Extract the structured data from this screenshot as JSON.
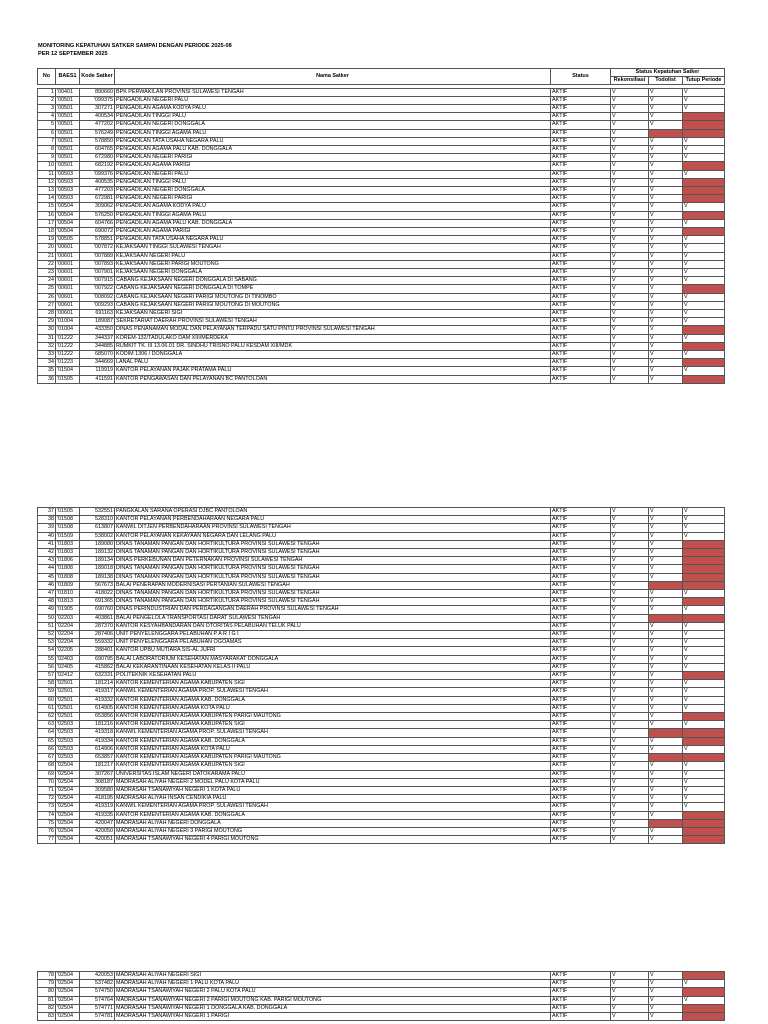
{
  "title_line1": "MONITORING KEPATUHAN SATKER SAMPAI DENGAN PERIODE 2025-08",
  "title_line2": "PER 12 SEPTEMBER 2025",
  "headers": {
    "no": "No",
    "baes1": "BAES1",
    "kode": "Kode Satker",
    "nama": "Nama Satker",
    "status": "Status",
    "group": "Status Kepatuhan Satker",
    "rekon": "Rekonsiliasi",
    "todolist": "Todolist",
    "tutup": "Tutup Periode"
  },
  "colors": {
    "flag": "#c0504d"
  },
  "rows": [
    [
      "1",
      "'00401",
      "890660",
      "BPK PERWAKILAN  PROVINSI SULAWESI TENGAH",
      "AKTIF",
      "V",
      "V",
      "V"
    ],
    [
      "2",
      "'00501",
      "'099375",
      "PENGADILAN NEGERI PALU",
      "AKTIF",
      "V",
      "V",
      "V"
    ],
    [
      "3",
      "'00501",
      "307271",
      "PENGADILAN AGAMA KODYA PALU",
      "AKTIF",
      "V",
      "V",
      "V"
    ],
    [
      "4",
      "'00501",
      "400534",
      "PENGADILAN TINGGI PALU",
      "AKTIF",
      "V",
      "V",
      ""
    ],
    [
      "5",
      "'00501",
      "477202",
      "PENGADILAN NEGERI DONGGALA",
      "AKTIF",
      "V",
      "V",
      ""
    ],
    [
      "6",
      "'00501",
      "576249",
      "PENGADILAN TINGGI AGAMA PALU",
      "AKTIF",
      "V",
      "",
      ""
    ],
    [
      "7",
      "'00501",
      "578850",
      "PENGADILAN TATA USAHA NEGARA PALU",
      "AKTIF",
      "V",
      "V",
      "V"
    ],
    [
      "8",
      "'00501",
      "604765",
      "PENGADILAN AGAMA PALU KAB. DONGGALA",
      "AKTIF",
      "V",
      "V",
      "V"
    ],
    [
      "9",
      "'00501",
      "672980",
      "PENGADILAN NEGERI PARIGI",
      "AKTIF",
      "V",
      "V",
      "V"
    ],
    [
      "10",
      "'00501",
      "682192",
      "PENGADILAN AGAMA PARIGI",
      "AKTIF",
      "V",
      "V",
      ""
    ],
    [
      "11",
      "'00503",
      "'099376",
      "PENGADILAN NEGERI PALU",
      "AKTIF",
      "V",
      "V",
      "V"
    ],
    [
      "12",
      "'00503",
      "400535",
      "PENGADILAN TINGGI PALU",
      "AKTIF",
      "V",
      "V",
      ""
    ],
    [
      "13",
      "'00503",
      "477203",
      "PENGADILAN NEGERI DONGGALA",
      "AKTIF",
      "V",
      "V",
      ""
    ],
    [
      "14",
      "'00503",
      "672981",
      "PENGADILAN NEGERI PARIGI",
      "AKTIF",
      "V",
      "V",
      ""
    ],
    [
      "15",
      "'00504",
      "309062",
      "PENGADILAN AGAMA KODYA PALU",
      "AKTIF",
      "V",
      "V",
      "V"
    ],
    [
      "16",
      "'00504",
      "576250",
      "PENGADILAN TINGGI AGAMA PALU",
      "AKTIF",
      "V",
      "V",
      ""
    ],
    [
      "17",
      "'00504",
      "604766",
      "PENGADILAN AGAMA PALU KAB. DONGGALA",
      "AKTIF",
      "V",
      "V",
      "V"
    ],
    [
      "18",
      "'00504",
      "690072",
      "PENGADILAN AGAMA PARIGI",
      "AKTIF",
      "V",
      "V",
      ""
    ],
    [
      "19",
      "'00505",
      "578851",
      "PENGADILAN TATA USAHA NEGARA PALU",
      "AKTIF",
      "V",
      "V",
      "V"
    ],
    [
      "20",
      "'00601",
      "'007872",
      "KEJAKSAAN TINGGI SULAWESI TENGAH",
      "AKTIF",
      "V",
      "V",
      "V"
    ],
    [
      "21",
      "'00601",
      "'007889",
      "KEJAKSAAN NEGERI PALU",
      "AKTIF",
      "V",
      "V",
      "V"
    ],
    [
      "22",
      "'00601",
      "'007893",
      "KEJAKSAAN NEGERI PARIGI MOUTONG",
      "AKTIF",
      "V",
      "V",
      "V"
    ],
    [
      "23",
      "'00601",
      "'007901",
      "KEJAKSAAN NEGERI DONGGALA",
      "AKTIF",
      "V",
      "V",
      "V"
    ],
    [
      "24",
      "'00601",
      "'007915",
      "CABANG KEJAKSAAN NEGERI DONGGALA DI SABANG",
      "AKTIF",
      "V",
      "V",
      "V"
    ],
    [
      "25",
      "'00601",
      "'007922",
      "CABANG KEJAKSAAN NEGERI DONGGALA DI TOMPE",
      "AKTIF",
      "V",
      "V",
      ""
    ],
    [
      "26",
      "'00601",
      "'008092",
      "CABANG KEJAKSAAN NEGERI PARIGI MOUTONG DI TINOMBO",
      "AKTIF",
      "V",
      "V",
      "V"
    ],
    [
      "27",
      "'00601",
      "'009293",
      "CABANG KEJAKSAAN NEGERI PARIGI MOUTONG DI MOUTONG",
      "AKTIF",
      "V",
      "V",
      "V"
    ],
    [
      "28",
      "'00601",
      "691163",
      "KEJAKSAAN NEGERI SIGI",
      "AKTIF",
      "V",
      "V",
      "V"
    ],
    [
      "29",
      "'01004",
      "189087",
      "SEKRETARIAT DAERAH PROVINSI SULAWESI TENGAH",
      "AKTIF",
      "V",
      "V",
      "V"
    ],
    [
      "30",
      "'01004",
      "433350",
      "DINAS PENANAMAN MODAL DAN PELAYANAN TERPADU SATU PINTU PROVINSI SULAWESI TENGAH",
      "AKTIF",
      "V",
      "V",
      ""
    ],
    [
      "31",
      "'01222",
      "344337",
      "KOREM-132/TADULAKO DAM XIII/MERDEKA",
      "AKTIF",
      "V",
      "V",
      "V"
    ],
    [
      "32",
      "'01222",
      "344885",
      "RUMKIT TK. III 13.06.01 DR. SINDHU TRISNO PALU KESDAM XIII/MDK",
      "AKTIF",
      "V",
      "V",
      ""
    ],
    [
      "33",
      "'01222",
      "685070",
      "KODIM 1306 / DONGGALA",
      "AKTIF",
      "V",
      "V",
      "V"
    ],
    [
      "34",
      "'01223",
      "344669",
      "LANAL PALU",
      "AKTIF",
      "V",
      "V",
      ""
    ],
    [
      "35",
      "'01504",
      "119919",
      "KANTOR PELAYANAN PAJAK PRATAMA PALU",
      "AKTIF",
      "V",
      "V",
      "V"
    ],
    [
      "36",
      "'01505",
      "411591",
      "KANTOR PENGAWASAN DAN PELAYANAN BC PANTOLOAN",
      "AKTIF",
      "V",
      "V",
      ""
    ],
    [
      "37",
      "'01505",
      "532551",
      "PANGKALAN SARANA OPERASI DJBC PANTOLOAN",
      "AKTIF",
      "V",
      "V",
      "V"
    ],
    [
      "38",
      "'01508",
      "528310",
      "KANTOR PELAYANAN PERBENDAHARAAN NEGARA PALU",
      "AKTIF",
      "V",
      "V",
      "V"
    ],
    [
      "39",
      "'01508",
      "613807",
      "KANWIL DITJEN PERBENDAHARAAN PROVINSI SULAWESI TENGAH",
      "AKTIF",
      "V",
      "V",
      "V"
    ],
    [
      "40",
      "'01509",
      "538002",
      "KANTOR PELAYANAN KEKAYAAN NEGARA DAN LELANG PALU",
      "AKTIF",
      "V",
      "V",
      "V"
    ],
    [
      "41",
      "'01803",
      "189080",
      "DINAS TANAMAN PANGAN DAN HORTIKULTURA PROVINSI SULAWESI TENGAH",
      "AKTIF",
      "V",
      "V",
      ""
    ],
    [
      "42",
      "'01803",
      "189132",
      "DINAS TANAMAN PANGAN DAN HORTIKULTURA PROVINSI SULAWESI TENGAH",
      "AKTIF",
      "V",
      "V",
      ""
    ],
    [
      "43",
      "'01806",
      "189134",
      "DINAS PERKEBUNAN DAN PETERNAKAN PROVINSI SULAWESI TENGAH",
      "AKTIF",
      "V",
      "V",
      ""
    ],
    [
      "44",
      "'01808",
      "189018",
      "DINAS TANAMAN PANGAN DAN HORTIKULTURA PROVINSI SULAWESI TENGAH",
      "AKTIF",
      "V",
      "V",
      ""
    ],
    [
      "45",
      "'01808",
      "189138",
      "DINAS TANAMAN PANGAN DAN HORTIKULTURA PROVINSI SULAWESI TENGAH",
      "AKTIF",
      "V",
      "V",
      ""
    ],
    [
      "46",
      "'01809",
      "567673",
      "BALAI PENERAPAN MODERNISASI PERTANIAN SULAWESI TENGAH",
      "AKTIF",
      "V",
      "",
      ""
    ],
    [
      "47",
      "'01810",
      "418022",
      "DINAS TANAMAN PANGAN DAN HORTIKULTURA PROVINSI SULAWESI TENGAH",
      "AKTIF",
      "V",
      "V",
      "V"
    ],
    [
      "48",
      "'01813",
      "691365",
      "DINAS TANAMAN PANGAN DAN HORTIKULTURA PROVINSI SULAWESI TENGAH",
      "AKTIF",
      "V",
      "V",
      ""
    ],
    [
      "49",
      "'01905",
      "690760",
      "DINAS PERINDUSTRIAN DAN PERDAGANGAN DAERAH PROVINSI SULAWESI TENGAH",
      "AKTIF",
      "V",
      "V",
      "V"
    ],
    [
      "50",
      "'02203",
      "403861",
      "BALAI PENGELOLA TRANSPORTASI DARAT SULAWESI TENGAH",
      "AKTIF",
      "V",
      "",
      ""
    ],
    [
      "51",
      "'02204",
      "287370",
      "KANTOR KESYAHBANDARAN DAN OTORITAS PELABUHAN TELUK PALU",
      "AKTIF",
      "V",
      "V",
      "V"
    ],
    [
      "52",
      "'02204",
      "287406",
      "UNIT PENYELENGGARA PELABUHAN P A R I G I",
      "AKTIF",
      "V",
      "V",
      "V"
    ],
    [
      "53",
      "'02204",
      "559332",
      "UNIT PENYELENGGARA PELABUHAN OGOAMAS",
      "AKTIF",
      "V",
      "V",
      "V"
    ],
    [
      "54",
      "'02205",
      "288401",
      "KANTOR UPBU MUTIARA SIS-AL JUFRI",
      "AKTIF",
      "V",
      "V",
      "V"
    ],
    [
      "55",
      "'02403",
      "690795",
      "BALAI LABORATORIUM KESEHATAN MASYARAKAT DONGGALA",
      "AKTIF",
      "V",
      "V",
      "V"
    ],
    [
      "56",
      "'02405",
      "415862",
      "BALAI KEKARANTINAAN KESEHATAN KELAS II PALU",
      "AKTIF",
      "V",
      "V",
      "V"
    ],
    [
      "57",
      "'02412",
      "632331",
      "POLITEKNIK KESEHATAN PALU",
      "AKTIF",
      "V",
      "V",
      ""
    ],
    [
      "58",
      "'02501",
      "181214",
      "KANTOR KEMENTERIAN AGAMA KABUPATEN SIGI",
      "AKTIF",
      "V",
      "V",
      "V"
    ],
    [
      "59",
      "'02501",
      "419317",
      "KANWIL KEMENTERIAN AGAMA PROP. SULAWESI TENGAH",
      "AKTIF",
      "V",
      "V",
      "V"
    ],
    [
      "60",
      "'02501",
      "419332",
      "KANTOR KEMENTERIAN AGAMA KAB. DONGGALA",
      "AKTIF",
      "V",
      "V",
      "V"
    ],
    [
      "61",
      "'02501",
      "614905",
      "KANTOR KEMENTERIAN AGAMA KOTA PALU",
      "AKTIF",
      "V",
      "V",
      "V"
    ],
    [
      "62",
      "'02501",
      "653856",
      "KANTOR KEMENTERIAN AGAMA KABUPATEN PARIGI MAUTONG",
      "AKTIF",
      "V",
      "V",
      ""
    ],
    [
      "63",
      "'02503",
      "181216",
      "KANTOR KEMENTERIAN AGAMA KABUPATEN SIGI",
      "AKTIF",
      "V",
      "V",
      "V"
    ],
    [
      "64",
      "'02503",
      "419318",
      "KANWIL KEMENTERIAN AGAMA PROP. SULAWESI TENGAH",
      "AKTIF",
      "V",
      "",
      ""
    ],
    [
      "65",
      "'02503",
      "419334",
      "KANTOR KEMENTERIAN AGAMA KAB. DONGGALA",
      "AKTIF",
      "V",
      "V",
      ""
    ],
    [
      "66",
      "'02503",
      "614906",
      "KANTOR KEMENTERIAN AGAMA KOTA PALU",
      "AKTIF",
      "V",
      "V",
      "V"
    ],
    [
      "67",
      "'02503",
      "653857",
      "KANTOR KEMENTERIAN AGAMA KABUPATEN PARIGI MAUTONG",
      "AKTIF",
      "V",
      "",
      ""
    ],
    [
      "68",
      "'02504",
      "181217",
      "KANTOR KEMENTERIAN AGAMA KABUPATEN SIGI",
      "AKTIF",
      "V",
      "V",
      "V"
    ],
    [
      "69",
      "'02504",
      "307267",
      "UNIVERSITAS ISLAM NEGERI DATOKARAMA PALU",
      "AKTIF",
      "V",
      "V",
      "V"
    ],
    [
      "70",
      "'02504",
      "308187",
      "MADRASAH ALIYAH NEGERI 2 MODEL PALU KOTA PALU",
      "AKTIF",
      "V",
      "V",
      "V"
    ],
    [
      "71",
      "'02504",
      "309580",
      "MADRASAH TSANAWIYAH NEGERI 1 KOTA PALU",
      "AKTIF",
      "V",
      "V",
      "V"
    ],
    [
      "72",
      "'02504",
      "418195",
      "MADRASAH ALIYAH INSAN CENDIKIA PALU",
      "AKTIF",
      "V",
      "V",
      "V"
    ],
    [
      "73",
      "'02504",
      "419319",
      "KANWIL KEMENTERIAN AGAMA PROP. SULAWESI TENGAH",
      "AKTIF",
      "V",
      "V",
      "V"
    ],
    [
      "74",
      "'02504",
      "419335",
      "KANTOR KEMENTERIAN AGAMA KAB. DONGGALA",
      "AKTIF",
      "V",
      "V",
      ""
    ],
    [
      "75",
      "'02504",
      "420047",
      "MADRASAH ALIYAH NEGERI DONGGALA",
      "AKTIF",
      "V",
      "",
      ""
    ],
    [
      "76",
      "'02504",
      "420050",
      "MADRASAH ALIYAH NEGERI 3 PARIGI MOUTONG",
      "AKTIF",
      "V",
      "V",
      ""
    ],
    [
      "77",
      "'02504",
      "420051",
      "MADRASAH TSANAWIYAH NEGERI 4 PARIGI MOUTONG",
      "AKTIF",
      "V",
      "V",
      ""
    ],
    [
      "78",
      "'02504",
      "420053",
      "MADRASAH ALIYAH NEGERI SIGI",
      "AKTIF",
      "V",
      "V",
      ""
    ],
    [
      "79",
      "'02504",
      "537482",
      "MADRASAH ALIYAH NEGERI 1 PALU KOTA PALU",
      "AKTIF",
      "V",
      "V",
      "V"
    ],
    [
      "80",
      "'02504",
      "574750",
      "MADRASAH TSANAWIYAH NEGERI 2 PALU KOTA PALU",
      "AKTIF",
      "V",
      "V",
      ""
    ],
    [
      "81",
      "'02504",
      "574764",
      "MADRASAH TSANAWIYAH NEGERI 2 PARIGI MOUTONG KAB. PARIGI MOUTONG",
      "AKTIF",
      "V",
      "V",
      "V"
    ],
    [
      "82",
      "'02504",
      "574771",
      "MADRASAH TSANAWIYAH NEGERI 1 DONGGALA KAB. DONGGALA",
      "AKTIF",
      "V",
      "V",
      ""
    ],
    [
      "83",
      "'02504",
      "574781",
      "MADRASAH TSANAWIYAH NEGERI 1 PARIGI",
      "AKTIF",
      "V",
      "V",
      ""
    ]
  ]
}
